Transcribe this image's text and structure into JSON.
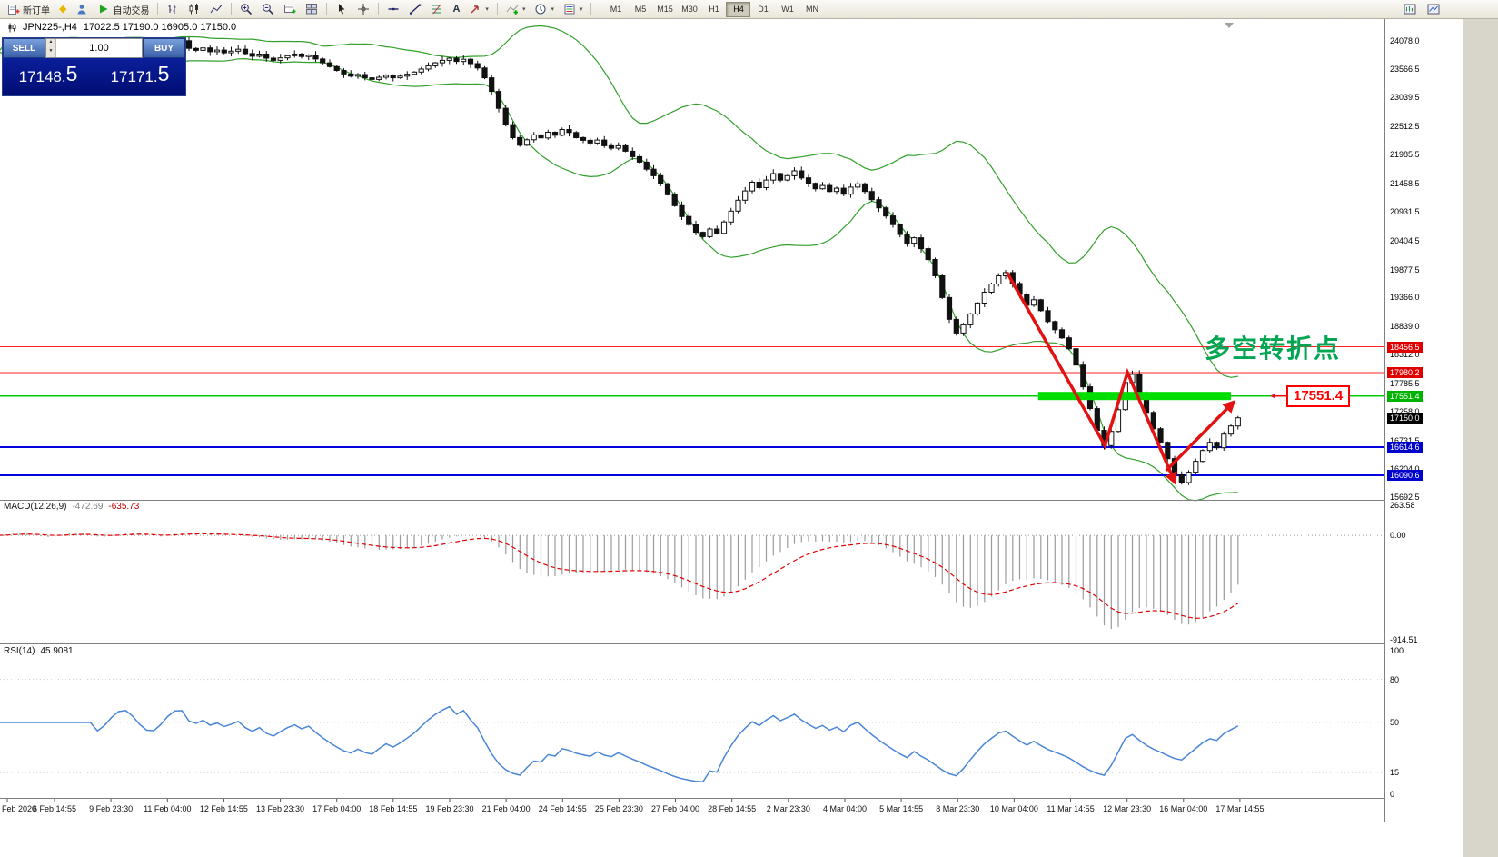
{
  "toolbar": {
    "new_order_label": "新订单",
    "auto_trading_label": "自动交易",
    "timeframes": [
      "M1",
      "M5",
      "M15",
      "M30",
      "H1",
      "H4",
      "D1",
      "W1",
      "MN"
    ],
    "active_timeframe": "H4"
  },
  "symbol_header": {
    "symbol": "JPN225-,H4",
    "ohlc": "17022.5 17190.0 16905.0 17150.0"
  },
  "trade_panel": {
    "sell_label": "SELL",
    "buy_label": "BUY",
    "volume": "1.00",
    "sell_price_main": "17148.",
    "sell_price_frac": "5",
    "buy_price_main": "17171.",
    "buy_price_frac": "5"
  },
  "chart": {
    "price_axis": [
      "24078.0",
      "23566.5",
      "23039.5",
      "22512.5",
      "21985.5",
      "21458.5",
      "20931.5",
      "20404.5",
      "19877.5",
      "19366.0",
      "18839.0",
      "18312.0",
      "17785.5",
      "17258.0",
      "16731.5",
      "16204.0",
      "15692.5"
    ],
    "levels": [
      {
        "label": "18456.5",
        "price": 18456.5,
        "line_color": "#ff2020",
        "line_width": 1,
        "badge_color": "#e00000"
      },
      {
        "label": "17980.2",
        "price": 17980.2,
        "line_color": "#ff2020",
        "line_width": 1,
        "badge_color": "#e00000"
      },
      {
        "label": "17551.4",
        "price": 17551.4,
        "line_color": "#00cc00",
        "line_width": 1.2,
        "badge_color": "#00b300"
      },
      {
        "label": "17150.0",
        "price": 17150.0,
        "line_color": null,
        "badge_color": "#000000"
      },
      {
        "label": "16614.6",
        "price": 16614.6,
        "line_color": "#0000e0",
        "line_width": 2,
        "badge_color": "#0000cc"
      },
      {
        "label": "16090.6",
        "price": 16090.6,
        "line_color": "#0000e0",
        "line_width": 2,
        "badge_color": "#0000cc"
      }
    ],
    "green_zone": {
      "price": 17551.4,
      "from_index": 120.6,
      "to_index": 148,
      "color": "#00dd00"
    },
    "annotation_text": "多空转折点",
    "callout_label": "17551.4",
    "trend_arrows": {
      "color": "#e31212",
      "width": 3.5,
      "paths": [
        [
          [
            116.2,
            19820
          ],
          [
            130.1,
            16640
          ],
          [
            133.3,
            17985
          ],
          [
            140.0,
            15975
          ]
        ],
        [
          [
            138.8,
            16180
          ],
          [
            148.3,
            17430
          ]
        ]
      ]
    },
    "time_axis": [
      "Feb 2020",
      "6 Feb 14:55",
      "9 Feb 23:30",
      "11 Feb 04:00",
      "12 Feb 14:55",
      "13 Feb 23:30",
      "17 Feb 04:00",
      "18 Feb 14:55",
      "19 Feb 23:30",
      "21 Feb 04:00",
      "24 Feb 14:55",
      "25 Feb 23:30",
      "27 Feb 04:00",
      "28 Feb 14:55",
      "2 Mar 23:30",
      "4 Mar 04:00",
      "5 Mar 14:55",
      "8 Mar 23:30",
      "10 Mar 04:00",
      "11 Mar 14:55",
      "12 Mar 23:30",
      "16 Mar 04:00",
      "17 Mar 14:55"
    ]
  },
  "macd": {
    "name": "MACD(12,26,9)",
    "value_main": "-472.69",
    "value_signal": "-635.73",
    "axis": [
      "263.58",
      "0.00",
      "-914.51"
    ],
    "range": [
      263.58,
      -914.51
    ]
  },
  "rsi": {
    "name": "RSI(14)",
    "value": "45.9081",
    "axis": [
      "100",
      "80",
      "50",
      "15",
      "0"
    ]
  },
  "colors": {
    "bands": "#33a02c",
    "bull": "#ffffff",
    "bear": "#111111",
    "macd_hist": "#9b9b9b",
    "macd_signal": "#e00000",
    "rsi_line": "#4a86d8",
    "accent_red": "#ff0000",
    "accent_blue": "#0000d0",
    "accent_green": "#00cc00"
  },
  "chart_data": {
    "type": "candlestick",
    "title": "JPN225- H4",
    "y_range": [
      15692.5,
      24078.0
    ],
    "bollinger": {
      "period": 20,
      "deviation": 2
    },
    "macd_params": "12,26,9",
    "rsi_period": 14,
    "closes": [
      23940,
      23905,
      23950,
      23880,
      23910,
      23860,
      23890,
      23925,
      23845,
      23795,
      23835,
      23760,
      23720,
      23765,
      23805,
      23835,
      23790,
      23815,
      23745,
      23675,
      23605,
      23535,
      23470,
      23430,
      23460,
      23400,
      23370,
      23410,
      23445,
      23400,
      23430,
      23465,
      23505,
      23560,
      23620,
      23675,
      23720,
      23760,
      23700,
      23740,
      23660,
      23580,
      23400,
      23150,
      22840,
      22540,
      22300,
      22160,
      22260,
      22350,
      22295,
      22400,
      22345,
      22450,
      22395,
      22300,
      22250,
      22200,
      22255,
      22150,
      22105,
      22150,
      22050,
      21950,
      21850,
      21720,
      21600,
      21450,
      21250,
      21050,
      20850,
      20700,
      20560,
      20480,
      20620,
      20540,
      20750,
      20950,
      21150,
      21320,
      21480,
      21380,
      21520,
      21640,
      21520,
      21600,
      21690,
      21560,
      21460,
      21360,
      21420,
      21310,
      21370,
      21260,
      21390,
      21450,
      21310,
      21160,
      21010,
      20860,
      20700,
      20520,
      20360,
      20460,
      20260,
      20060,
      19760,
      19360,
      18960,
      18710,
      18860,
      19060,
      19260,
      19460,
      19610,
      19760,
      19820,
      19620,
      19420,
      19220,
      19320,
      19120,
      18920,
      18770,
      18620,
      18420,
      18120,
      17720,
      17320,
      16920,
      16640,
      16900,
      17300,
      17800,
      17950,
      17600,
      17250,
      16950,
      16700,
      16400,
      16100,
      15960,
      16150,
      16350,
      16550,
      16700,
      16600,
      16850,
      17000,
      17150
    ]
  }
}
